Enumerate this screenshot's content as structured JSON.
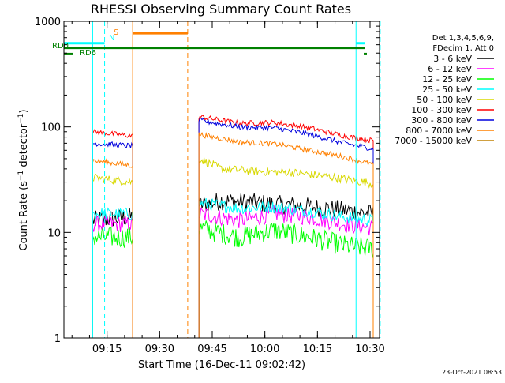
{
  "chart_data": {
    "type": "line",
    "title": "RHESSI Observing Summary Count Rates",
    "xlabel": "Start Time (16-Dec-11 09:02:42)",
    "ylabel": "Count Rate (s⁻¹ detector⁻¹)",
    "ylabel_parts": {
      "main": "Count Rate (s",
      "sup1": "−1",
      "mid": " detector",
      "sup2": "−1",
      "end": ")"
    },
    "yscale": "log",
    "ylim": [
      1,
      1000
    ],
    "xlim_minutes": [
      0,
      90
    ],
    "y_ticks": [
      {
        "value": 1,
        "label": "1"
      },
      {
        "value": 10,
        "label": "10"
      },
      {
        "value": 100,
        "label": "100"
      },
      {
        "value": 1000,
        "label": "1000"
      }
    ],
    "x_ticks": [
      {
        "t": 12.3,
        "label": "09:15"
      },
      {
        "t": 27.3,
        "label": "09:30"
      },
      {
        "t": 42.3,
        "label": "09:45"
      },
      {
        "t": 57.3,
        "label": "10:00"
      },
      {
        "t": 72.3,
        "label": "10:15"
      },
      {
        "t": 87.3,
        "label": "10:30"
      }
    ],
    "legend_header": [
      "Det 1,3,4,5,6,9,",
      "FDecim 1, Att 0"
    ],
    "segments": [
      [
        8.2,
        19.6
      ],
      [
        38.5,
        88.2
      ]
    ],
    "series": [
      {
        "name": "3 - 6 keV",
        "color": "#000000",
        "seg1": [
          [
            8.2,
            13
          ],
          [
            19.6,
            14
          ]
        ],
        "seg2": [
          [
            38.5,
            18
          ],
          [
            45,
            20
          ],
          [
            55,
            19
          ],
          [
            65,
            18
          ],
          [
            75,
            17
          ],
          [
            88.2,
            15
          ]
        ],
        "noise": 0.09
      },
      {
        "name": "6 - 12 keV",
        "color": "#ff00ff",
        "seg1": [
          [
            8.2,
            12
          ],
          [
            19.6,
            12
          ]
        ],
        "seg2": [
          [
            38.5,
            15
          ],
          [
            50,
            13
          ],
          [
            60,
            15
          ],
          [
            70,
            14
          ],
          [
            80,
            12
          ],
          [
            88.2,
            11
          ]
        ],
        "noise": 0.08
      },
      {
        "name": "12 - 25 keV",
        "color": "#00ff00",
        "seg1": [
          [
            8.2,
            9
          ],
          [
            19.6,
            9
          ]
        ],
        "seg2": [
          [
            38.5,
            11
          ],
          [
            50,
            9
          ],
          [
            60,
            10.5
          ],
          [
            70,
            9
          ],
          [
            80,
            7.5
          ],
          [
            88.2,
            7
          ]
        ],
        "noise": 0.1
      },
      {
        "name": "25 - 50 keV",
        "color": "#00ffff",
        "seg1": [
          [
            8.2,
            15
          ],
          [
            19.6,
            15
          ]
        ],
        "seg2": [
          [
            38.5,
            19
          ],
          [
            50,
            17
          ],
          [
            60,
            17.5
          ],
          [
            70,
            16
          ],
          [
            80,
            14
          ],
          [
            88.2,
            13
          ]
        ],
        "noise": 0.06
      },
      {
        "name": "50 - 100 keV",
        "color": "#d8d800",
        "seg1": [
          [
            8.2,
            33
          ],
          [
            19.6,
            30
          ]
        ],
        "seg2": [
          [
            38.5,
            50
          ],
          [
            45,
            40
          ],
          [
            55,
            38
          ],
          [
            65,
            37
          ],
          [
            75,
            34
          ],
          [
            88.2,
            29
          ]
        ],
        "noise": 0.04
      },
      {
        "name": "100 - 300 keV",
        "color": "#ff0000",
        "seg1": [
          [
            8.2,
            90
          ],
          [
            19.6,
            82
          ]
        ],
        "seg2": [
          [
            38.5,
            125
          ],
          [
            50,
            108
          ],
          [
            60,
            110
          ],
          [
            70,
            98
          ],
          [
            80,
            82
          ],
          [
            88.2,
            74
          ]
        ],
        "noise": 0.025
      },
      {
        "name": "300 - 800 keV",
        "color": "#0000dd",
        "seg1": [
          [
            8.2,
            70
          ],
          [
            19.6,
            66
          ]
        ],
        "seg2": [
          [
            38.5,
            115
          ],
          [
            50,
            100
          ],
          [
            60,
            98
          ],
          [
            70,
            85
          ],
          [
            80,
            70
          ],
          [
            88.2,
            62
          ]
        ],
        "noise": 0.025
      },
      {
        "name": "800 - 7000 keV",
        "color": "#ff8000",
        "seg1": [
          [
            8.2,
            48
          ],
          [
            19.6,
            43
          ]
        ],
        "seg2": [
          [
            38.5,
            85
          ],
          [
            50,
            72
          ],
          [
            60,
            69
          ],
          [
            70,
            60
          ],
          [
            80,
            52
          ],
          [
            88.2,
            44
          ]
        ],
        "noise": 0.025
      },
      {
        "name": "7000 - 15000 keV",
        "color": "#c08000",
        "seg1": [],
        "seg2": [],
        "noise": 0
      }
    ],
    "vertical_lines": [
      {
        "t": 8.2,
        "color": "#00ffff",
        "style": "solid"
      },
      {
        "t": 11.6,
        "color": "#00ffff",
        "style": "dashed"
      },
      {
        "t": 19.6,
        "color": "#ff8000",
        "style": "solid"
      },
      {
        "t": 35.3,
        "color": "#ff8000",
        "style": "dashed"
      },
      {
        "t": 83.3,
        "color": "#00ffff",
        "style": "solid"
      },
      {
        "t": 90.2,
        "color": "#00ffff",
        "style": "dashed"
      }
    ],
    "flag_bars": [
      {
        "label": "N",
        "color": "#00ffff",
        "t_start": 0,
        "t_end": 11.6,
        "y": 620
      },
      {
        "label": "N",
        "color": "#00ffff",
        "t_start": 83.3,
        "t_end": 91,
        "y": 620
      },
      {
        "label": "S",
        "color": "#ff8000",
        "t_start": 19.6,
        "t_end": 35.3,
        "y": 770
      },
      {
        "label": "RD0",
        "color": "#008000",
        "t_start": 0,
        "t_end": 91,
        "y": 560
      },
      {
        "label": "RD6",
        "color": "#008000",
        "t_start": 0,
        "t_end": 2.5,
        "y": 490
      }
    ],
    "flag_labels": {
      "n": "N",
      "s": "S",
      "rd0": "RD0",
      "rd6": "RD6"
    },
    "timestamp": "23-Oct-2021 08:53"
  }
}
